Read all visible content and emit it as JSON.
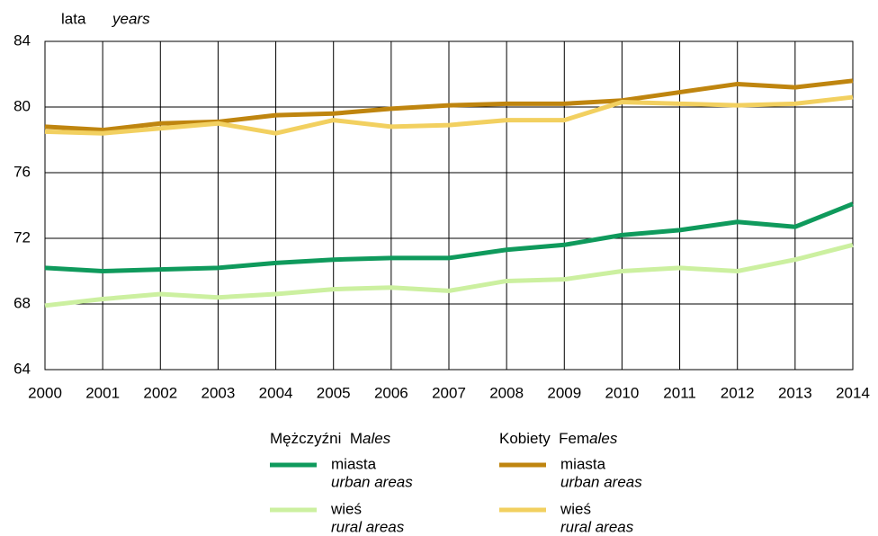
{
  "chart_data": {
    "type": "line",
    "y_label": "lata",
    "y_label_en": "years",
    "categories": [
      "2000",
      "2001",
      "2002",
      "2003",
      "2004",
      "2005",
      "2006",
      "2007",
      "2008",
      "2009",
      "2010",
      "2011",
      "2012",
      "2013",
      "2014"
    ],
    "ylim": [
      64,
      84
    ],
    "yticks": [
      64,
      68,
      72,
      76,
      80,
      84
    ],
    "grid": true,
    "legend_groups": [
      {
        "name": "Mężczyźni",
        "name_en_parts": [
          "M",
          "ales"
        ]
      },
      {
        "name": "Kobiety",
        "name_en_parts": [
          "Fem",
          "ales"
        ]
      }
    ],
    "series": [
      {
        "name": "miasta",
        "name_en": "urban areas",
        "group": 0,
        "color": "#0f9a5c",
        "values": [
          70.2,
          70.0,
          70.1,
          70.2,
          70.5,
          70.7,
          70.8,
          70.8,
          71.3,
          71.6,
          72.2,
          72.5,
          73.0,
          72.7,
          74.1
        ]
      },
      {
        "name": "wieś",
        "name_en": "rural areas",
        "group": 0,
        "color": "#ccf0a0",
        "values": [
          67.9,
          68.3,
          68.6,
          68.4,
          68.6,
          68.9,
          69.0,
          68.8,
          69.4,
          69.5,
          70.0,
          70.2,
          70.0,
          70.7,
          71.6
        ]
      },
      {
        "name": "miasta",
        "name_en": "urban areas",
        "group": 1,
        "color": "#bf850f",
        "values": [
          78.8,
          78.6,
          79.0,
          79.1,
          79.5,
          79.6,
          79.9,
          80.1,
          80.2,
          80.2,
          80.4,
          80.9,
          81.4,
          81.2,
          81.6
        ]
      },
      {
        "name": "wieś",
        "name_en": "rural areas",
        "group": 1,
        "color": "#f2d060",
        "values": [
          78.5,
          78.4,
          78.7,
          79.0,
          78.4,
          79.2,
          78.8,
          78.9,
          79.2,
          79.2,
          80.3,
          80.2,
          80.1,
          80.2,
          80.6
        ]
      }
    ]
  }
}
